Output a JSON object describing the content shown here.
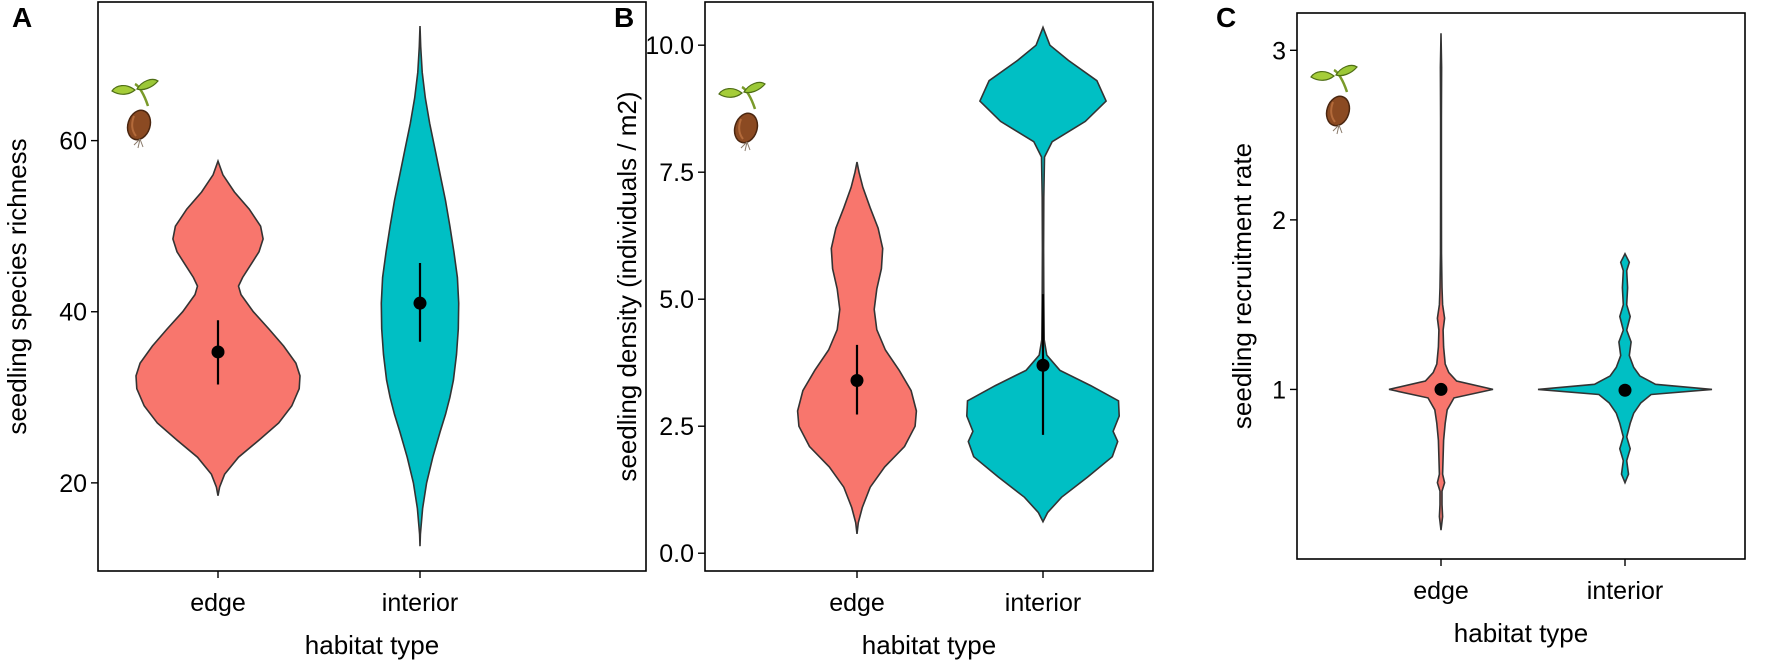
{
  "colors": {
    "edge": "#F8766D",
    "interior": "#00BFC4",
    "outline": "#333333",
    "point": "#000000"
  },
  "icons": [
    "seedling-icon"
  ],
  "chart_data": [
    {
      "panel": "A",
      "type": "violin",
      "categories": [
        "edge",
        "interior"
      ],
      "xlabel": "habitat type",
      "ylabel": "seedling species richness",
      "ylim": [
        9.7,
        76.2
      ],
      "yticks": [
        20,
        40,
        60
      ],
      "ytick_labels": [
        "20",
        "40",
        "60"
      ],
      "series": [
        {
          "name": "edge",
          "color": "#F8766D",
          "mean": 35.3,
          "ci": [
            31.5,
            39.0
          ],
          "min": 18.5,
          "max": 57.6,
          "density": [
            [
              18.5,
              0
            ],
            [
              19.5,
              0.02
            ],
            [
              21,
              0.08
            ],
            [
              23,
              0.25
            ],
            [
              25,
              0.5
            ],
            [
              27,
              0.74
            ],
            [
              29,
              0.9
            ],
            [
              31,
              0.99
            ],
            [
              32.5,
              1.0
            ],
            [
              34,
              0.95
            ],
            [
              36,
              0.8
            ],
            [
              38,
              0.62
            ],
            [
              40,
              0.43
            ],
            [
              42,
              0.28
            ],
            [
              43,
              0.25
            ],
            [
              44,
              0.3
            ],
            [
              45.5,
              0.4
            ],
            [
              47,
              0.5
            ],
            [
              48.5,
              0.55
            ],
            [
              50,
              0.52
            ],
            [
              52,
              0.38
            ],
            [
              54,
              0.2
            ],
            [
              56,
              0.06
            ],
            [
              57.6,
              0
            ]
          ]
        },
        {
          "name": "interior",
          "color": "#00BFC4",
          "mean": 41.0,
          "ci": [
            36.5,
            45.7
          ],
          "min": 12.6,
          "max": 73.4,
          "density": [
            [
              12.6,
              0
            ],
            [
              14,
              0.01
            ],
            [
              17,
              0.06
            ],
            [
              20,
              0.15
            ],
            [
              23,
              0.29
            ],
            [
              26,
              0.46
            ],
            [
              28,
              0.58
            ],
            [
              30,
              0.68
            ],
            [
              32,
              0.76
            ],
            [
              35,
              0.83
            ],
            [
              38,
              0.87
            ],
            [
              41,
              0.88
            ],
            [
              44,
              0.85
            ],
            [
              47,
              0.77
            ],
            [
              50,
              0.68
            ],
            [
              53,
              0.58
            ],
            [
              56,
              0.46
            ],
            [
              59,
              0.34
            ],
            [
              62,
              0.22
            ],
            [
              65,
              0.12
            ],
            [
              68,
              0.05
            ],
            [
              71,
              0.015
            ],
            [
              73.4,
              0
            ]
          ]
        }
      ]
    },
    {
      "panel": "B",
      "type": "violin",
      "categories": [
        "edge",
        "interior"
      ],
      "xlabel": "habitat type",
      "ylabel": "seedling density (individuals / m2)",
      "ylim": [
        -0.35,
        10.85
      ],
      "yticks": [
        0.0,
        2.5,
        5.0,
        7.5,
        10.0
      ],
      "ytick_labels": [
        "0.0",
        "2.5",
        "5.0",
        "7.5",
        "10.0"
      ],
      "series": [
        {
          "name": "edge",
          "color": "#F8766D",
          "mean": 3.4,
          "ci": [
            2.73,
            4.1
          ],
          "min": 0.38,
          "max": 7.7,
          "density": [
            [
              0.38,
              0
            ],
            [
              0.6,
              0.02
            ],
            [
              0.9,
              0.08
            ],
            [
              1.3,
              0.2
            ],
            [
              1.7,
              0.42
            ],
            [
              2.1,
              0.72
            ],
            [
              2.5,
              0.88
            ],
            [
              2.8,
              0.9
            ],
            [
              3.2,
              0.82
            ],
            [
              3.6,
              0.64
            ],
            [
              4.0,
              0.43
            ],
            [
              4.4,
              0.3
            ],
            [
              4.8,
              0.26
            ],
            [
              5.2,
              0.3
            ],
            [
              5.6,
              0.37
            ],
            [
              6.0,
              0.39
            ],
            [
              6.4,
              0.32
            ],
            [
              6.8,
              0.2
            ],
            [
              7.2,
              0.09
            ],
            [
              7.5,
              0.03
            ],
            [
              7.7,
              0
            ]
          ]
        },
        {
          "name": "interior",
          "color": "#00BFC4",
          "mean": 3.7,
          "ci": [
            2.33,
            5.1
          ],
          "min": 0.62,
          "max": 10.35,
          "density": [
            [
              0.62,
              0
            ],
            [
              0.8,
              0.06
            ],
            [
              1.1,
              0.24
            ],
            [
              1.5,
              0.58
            ],
            [
              1.9,
              0.9
            ],
            [
              2.2,
              0.97
            ],
            [
              2.4,
              0.91
            ],
            [
              2.7,
              0.99
            ],
            [
              3.0,
              0.98
            ],
            [
              3.3,
              0.62
            ],
            [
              3.6,
              0.22
            ],
            [
              3.9,
              0.05
            ],
            [
              4.2,
              0.015
            ],
            [
              5.0,
              0.01
            ],
            [
              6.0,
              0.008
            ],
            [
              7.0,
              0.01
            ],
            [
              7.8,
              0.02
            ],
            [
              8.1,
              0.12
            ],
            [
              8.5,
              0.55
            ],
            [
              8.9,
              0.82
            ],
            [
              9.3,
              0.7
            ],
            [
              9.7,
              0.33
            ],
            [
              10.0,
              0.09
            ],
            [
              10.35,
              0
            ]
          ]
        }
      ]
    },
    {
      "panel": "C",
      "type": "violin",
      "categories": [
        "edge",
        "interior"
      ],
      "xlabel": "habitat type",
      "ylabel": "seedling recruitment rate",
      "ylim": [
        0,
        3.22
      ],
      "yticks": [
        1,
        2,
        3
      ],
      "ytick_labels": [
        "1",
        "2",
        "3"
      ],
      "series": [
        {
          "name": "edge",
          "color": "#F8766D",
          "mean": 1.0,
          "ci": [
            0.98,
            1.02
          ],
          "min": 0.17,
          "max": 3.1,
          "density": [
            [
              0.17,
              0
            ],
            [
              0.25,
              0.03
            ],
            [
              0.32,
              0.02
            ],
            [
              0.4,
              0.02
            ],
            [
              0.45,
              0.07
            ],
            [
              0.5,
              0.03
            ],
            [
              0.6,
              0.04
            ],
            [
              0.7,
              0.05
            ],
            [
              0.8,
              0.08
            ],
            [
              0.88,
              0.12
            ],
            [
              0.95,
              0.25
            ],
            [
              1.0,
              1.0
            ],
            [
              1.05,
              0.3
            ],
            [
              1.1,
              0.15
            ],
            [
              1.15,
              0.08
            ],
            [
              1.25,
              0.05
            ],
            [
              1.35,
              0.04
            ],
            [
              1.42,
              0.07
            ],
            [
              1.5,
              0.03
            ],
            [
              1.6,
              0.02
            ],
            [
              1.8,
              0.01
            ],
            [
              2.2,
              0.008
            ],
            [
              2.6,
              0.008
            ],
            [
              2.9,
              0.012
            ],
            [
              3.1,
              0
            ]
          ]
        },
        {
          "name": "interior",
          "color": "#00BFC4",
          "mean": 0.995,
          "ci": [
            0.975,
            1.015
          ],
          "min": 0.45,
          "max": 1.8,
          "density": [
            [
              0.45,
              0
            ],
            [
              0.5,
              0.04
            ],
            [
              0.58,
              0.02
            ],
            [
              0.65,
              0.06
            ],
            [
              0.72,
              0.02
            ],
            [
              0.8,
              0.06
            ],
            [
              0.86,
              0.1
            ],
            [
              0.92,
              0.18
            ],
            [
              0.97,
              0.3
            ],
            [
              1.0,
              1.0
            ],
            [
              1.03,
              0.35
            ],
            [
              1.08,
              0.17
            ],
            [
              1.13,
              0.1
            ],
            [
              1.2,
              0.05
            ],
            [
              1.28,
              0.07
            ],
            [
              1.35,
              0.02
            ],
            [
              1.43,
              0.06
            ],
            [
              1.5,
              0.02
            ],
            [
              1.6,
              0.03
            ],
            [
              1.7,
              0.02
            ],
            [
              1.75,
              0.05
            ],
            [
              1.8,
              0
            ]
          ]
        }
      ]
    }
  ]
}
